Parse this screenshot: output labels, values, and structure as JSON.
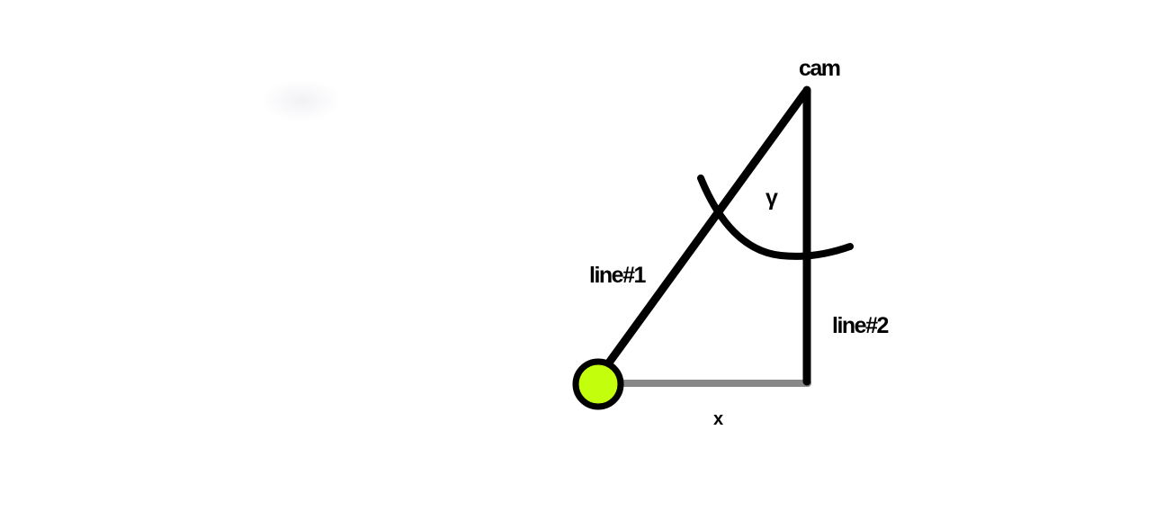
{
  "diagram": {
    "labels": {
      "cam": "cam",
      "angle": "γ",
      "line1": "line#1",
      "line2": "line#2",
      "x": "x"
    },
    "colors": {
      "stroke": "#000000",
      "baseline": "#888888",
      "point_fill": "#c3ff0d",
      "point_stroke": "#000000",
      "background": "#ffffff"
    }
  }
}
